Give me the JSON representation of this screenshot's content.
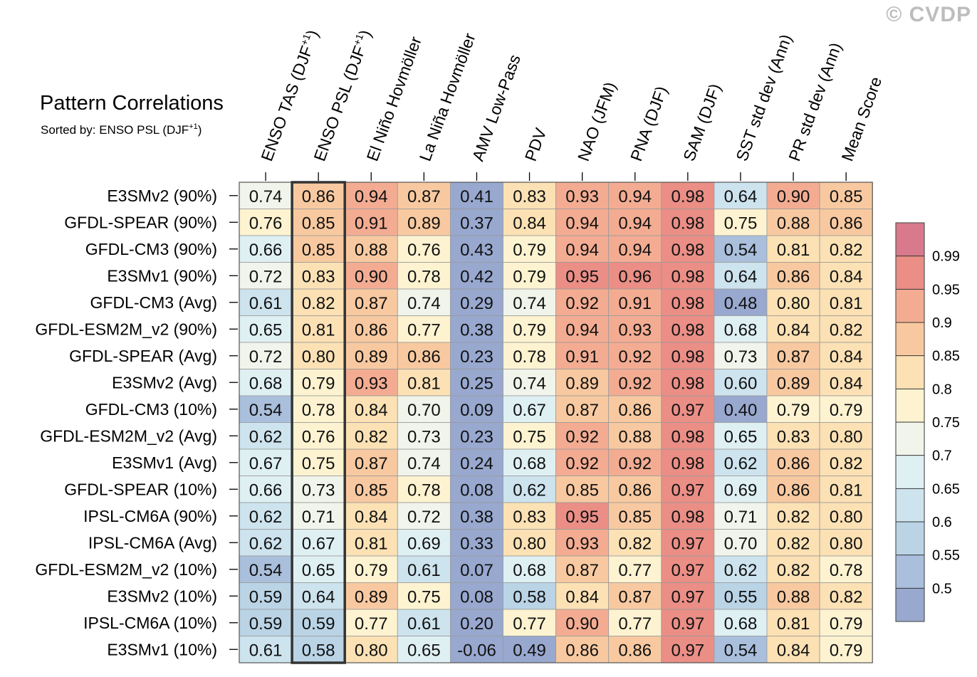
{
  "watermark": "© CVDP",
  "chart_data": {
    "type": "heatmap",
    "title": "Pattern Correlations",
    "subtitle": "Sorted by: ENSO PSL (DJF+1)",
    "subtitle_parts": [
      "Sorted by: ENSO PSL (DJF",
      "+1",
      ")"
    ],
    "columns": [
      {
        "text": "ENSO TAS (DJF",
        "sup": "+1",
        "tail": ")"
      },
      {
        "text": "ENSO PSL (DJF",
        "sup": "+1",
        "tail": ")"
      },
      {
        "text": "El Niño Hovmöller"
      },
      {
        "text": "La Niña Hovmöller"
      },
      {
        "text": "AMV Low-Pass"
      },
      {
        "text": "PDV"
      },
      {
        "text": "NAO (JFM)"
      },
      {
        "text": "PNA (DJF)"
      },
      {
        "text": "SAM (DJF)"
      },
      {
        "text": "SST std dev (Ann)"
      },
      {
        "text": "PR std dev (Ann)"
      },
      {
        "text": "Mean Score"
      }
    ],
    "highlighted_column": 1,
    "rows": [
      "E3SMv2 (90%)",
      "GFDL-SPEAR (90%)",
      "GFDL-CM3 (90%)",
      "E3SMv1 (90%)",
      "GFDL-CM3 (Avg)",
      "GFDL-ESM2M_v2 (90%)",
      "GFDL-SPEAR (Avg)",
      "E3SMv2 (Avg)",
      "GFDL-CM3 (10%)",
      "GFDL-ESM2M_v2 (Avg)",
      "E3SMv1 (Avg)",
      "GFDL-SPEAR (10%)",
      "IPSL-CM6A (90%)",
      "IPSL-CM6A (Avg)",
      "GFDL-ESM2M_v2 (10%)",
      "E3SMv2 (10%)",
      "IPSL-CM6A (10%)",
      "E3SMv1 (10%)"
    ],
    "values": [
      [
        "0.74",
        "0.86",
        "0.94",
        "0.87",
        "0.41",
        "0.83",
        "0.93",
        "0.94",
        "0.98",
        "0.64",
        "0.90",
        "0.85"
      ],
      [
        "0.76",
        "0.85",
        "0.91",
        "0.89",
        "0.37",
        "0.84",
        "0.94",
        "0.94",
        "0.98",
        "0.75",
        "0.88",
        "0.86"
      ],
      [
        "0.66",
        "0.85",
        "0.88",
        "0.76",
        "0.43",
        "0.79",
        "0.94",
        "0.94",
        "0.98",
        "0.54",
        "0.81",
        "0.82"
      ],
      [
        "0.72",
        "0.83",
        "0.90",
        "0.78",
        "0.42",
        "0.79",
        "0.95",
        "0.96",
        "0.98",
        "0.64",
        "0.86",
        "0.84"
      ],
      [
        "0.61",
        "0.82",
        "0.87",
        "0.74",
        "0.29",
        "0.74",
        "0.92",
        "0.91",
        "0.98",
        "0.48",
        "0.80",
        "0.81"
      ],
      [
        "0.65",
        "0.81",
        "0.86",
        "0.77",
        "0.38",
        "0.79",
        "0.94",
        "0.93",
        "0.98",
        "0.68",
        "0.84",
        "0.82"
      ],
      [
        "0.72",
        "0.80",
        "0.89",
        "0.86",
        "0.23",
        "0.78",
        "0.91",
        "0.92",
        "0.98",
        "0.73",
        "0.87",
        "0.84"
      ],
      [
        "0.68",
        "0.79",
        "0.93",
        "0.81",
        "0.25",
        "0.74",
        "0.89",
        "0.92",
        "0.98",
        "0.60",
        "0.89",
        "0.84"
      ],
      [
        "0.54",
        "0.78",
        "0.84",
        "0.70",
        "0.09",
        "0.67",
        "0.87",
        "0.86",
        "0.97",
        "0.40",
        "0.79",
        "0.79"
      ],
      [
        "0.62",
        "0.76",
        "0.82",
        "0.73",
        "0.23",
        "0.75",
        "0.92",
        "0.88",
        "0.98",
        "0.65",
        "0.83",
        "0.80"
      ],
      [
        "0.67",
        "0.75",
        "0.87",
        "0.74",
        "0.24",
        "0.68",
        "0.92",
        "0.92",
        "0.98",
        "0.62",
        "0.86",
        "0.82"
      ],
      [
        "0.66",
        "0.73",
        "0.85",
        "0.78",
        "0.08",
        "0.62",
        "0.85",
        "0.86",
        "0.97",
        "0.69",
        "0.86",
        "0.81"
      ],
      [
        "0.62",
        "0.71",
        "0.84",
        "0.72",
        "0.38",
        "0.83",
        "0.95",
        "0.85",
        "0.98",
        "0.71",
        "0.82",
        "0.80"
      ],
      [
        "0.62",
        "0.67",
        "0.81",
        "0.69",
        "0.33",
        "0.80",
        "0.93",
        "0.82",
        "0.97",
        "0.70",
        "0.82",
        "0.80"
      ],
      [
        "0.54",
        "0.65",
        "0.79",
        "0.61",
        "0.07",
        "0.68",
        "0.87",
        "0.77",
        "0.97",
        "0.62",
        "0.82",
        "0.78"
      ],
      [
        "0.59",
        "0.64",
        "0.89",
        "0.75",
        "0.08",
        "0.58",
        "0.84",
        "0.87",
        "0.97",
        "0.55",
        "0.88",
        "0.82"
      ],
      [
        "0.59",
        "0.59",
        "0.77",
        "0.61",
        "0.20",
        "0.77",
        "0.90",
        "0.77",
        "0.97",
        "0.68",
        "0.81",
        "0.79"
      ],
      [
        "0.61",
        "0.58",
        "0.80",
        "0.65",
        "-0.06",
        "0.49",
        "0.86",
        "0.86",
        "0.97",
        "0.54",
        "0.84",
        "0.79"
      ]
    ],
    "colorbar": {
      "levels": [
        0.5,
        0.55,
        0.6,
        0.65,
        0.7,
        0.75,
        0.8,
        0.85,
        0.9,
        0.95,
        0.99
      ],
      "labels": [
        "0.5",
        "0.55",
        "0.6",
        "0.65",
        "0.7",
        "0.75",
        "0.8",
        "0.85",
        "0.9",
        "0.95",
        "0.99"
      ],
      "colors": [
        "#98a8cf",
        "#a9bfdc",
        "#bad4e6",
        "#cde3ee",
        "#dff0f3",
        "#f1f4ea",
        "#fdf3d1",
        "#fbe1b4",
        "#f8c9a0",
        "#f3ac92",
        "#ea8e86",
        "#d87a8b"
      ]
    }
  }
}
